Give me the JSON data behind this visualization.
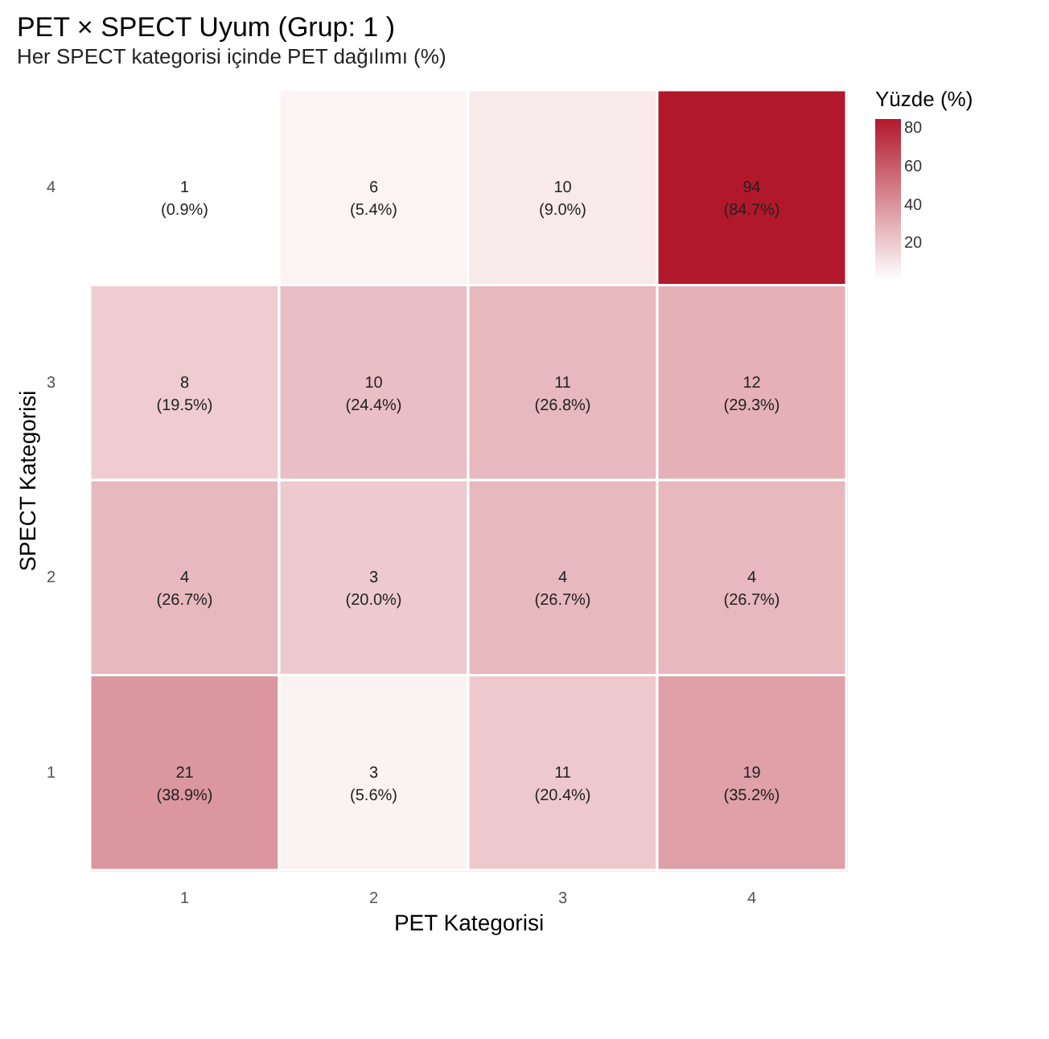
{
  "chart_data": {
    "type": "heatmap",
    "title": "PET × SPECT Uyum (Grup: 1 )",
    "subtitle": "Her SPECT kategorisi içinde PET dağılımı (%)",
    "xlabel": "PET Kategorisi",
    "ylabel": "SPECT Kategorisi",
    "clabel": "Yüzde (%)",
    "categories": [
      "1",
      "2",
      "3",
      "4"
    ],
    "y_categories": [
      "4",
      "3",
      "2",
      "1"
    ],
    "cells": [
      [
        0.9,
        5.4,
        9.0,
        84.7
      ],
      [
        19.5,
        24.4,
        26.8,
        29.3
      ],
      [
        26.7,
        20.0,
        26.7,
        26.7
      ],
      [
        38.9,
        5.6,
        20.4,
        35.2
      ]
    ],
    "cell_labels": [
      [
        "1\n(0.9%)",
        "6\n(5.4%)",
        "10\n(9.0%)",
        "94\n(84.7%)"
      ],
      [
        "8\n(19.5%)",
        "10\n(24.4%)",
        "11\n(26.8%)",
        "12\n(29.3%)"
      ],
      [
        "4\n(26.7%)",
        "3\n(20.0%)",
        "4\n(26.7%)",
        "4\n(26.7%)"
      ],
      [
        "21\n(38.9%)",
        "3\n(5.6%)",
        "11\n(20.4%)",
        "19\n(35.2%)"
      ]
    ],
    "clim": [
      0.9,
      84.7
    ],
    "cticks": [
      20,
      40,
      60,
      80
    ],
    "grid": false
  }
}
